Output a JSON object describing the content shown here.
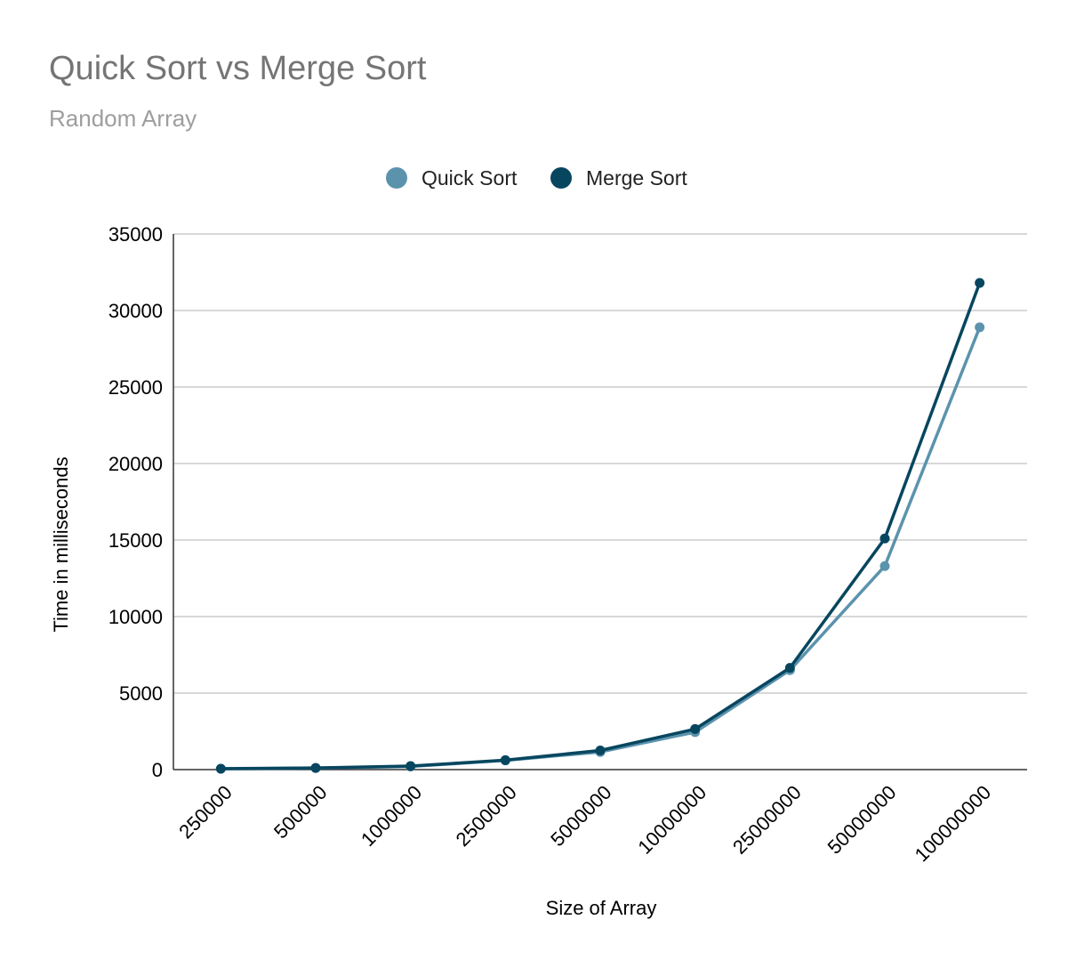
{
  "chart_data": {
    "type": "line",
    "title": "Quick Sort vs Merge Sort",
    "subtitle": "Random Array",
    "xlabel": "Size of Array",
    "ylabel": "Time in milliseconds",
    "categories": [
      "250000",
      "500000",
      "1000000",
      "2500000",
      "5000000",
      "10000000",
      "25000000",
      "50000000",
      "100000000"
    ],
    "ylim": [
      0,
      35000
    ],
    "yticks": [
      0,
      5000,
      10000,
      15000,
      20000,
      25000,
      30000,
      35000
    ],
    "grid": true,
    "legend_position": "top",
    "series": [
      {
        "name": "Quick Sort",
        "color": "#5b93ad",
        "values": [
          50,
          100,
          200,
          600,
          1150,
          2450,
          6500,
          13300,
          28900
        ]
      },
      {
        "name": "Merge Sort",
        "color": "#08465f",
        "values": [
          60,
          110,
          230,
          620,
          1250,
          2650,
          6650,
          15100,
          31800
        ]
      }
    ]
  }
}
